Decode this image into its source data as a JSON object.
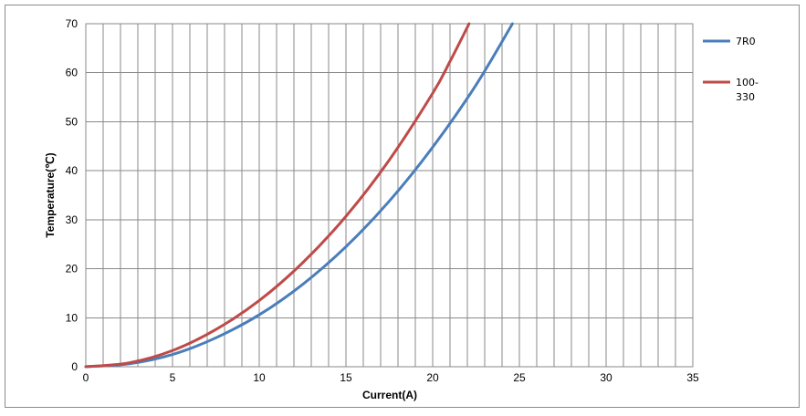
{
  "chart_data": {
    "type": "line",
    "title": "",
    "xlabel": "Current(A)",
    "ylabel": "Temperature(℃)",
    "xlim": [
      0,
      35
    ],
    "ylim": [
      0,
      70
    ],
    "x_ticks": [
      "0",
      "5",
      "10",
      "15",
      "20",
      "25",
      "30",
      "35"
    ],
    "y_ticks": [
      "0",
      "10",
      "20",
      "30",
      "40",
      "50",
      "60",
      "70"
    ],
    "grid": true,
    "legend_position": "right",
    "series": [
      {
        "name": "7R0",
        "color": "#4a7ebb",
        "x": [
          0,
          2.5,
          5,
          7.5,
          10,
          12.5,
          15,
          17.5,
          20,
          22.5,
          24.6
        ],
        "y": [
          0,
          0.6,
          2.5,
          5.9,
          10.6,
          16.8,
          24.5,
          33.8,
          44.8,
          57.5,
          70
        ]
      },
      {
        "name": "100-\n330",
        "color": "#be4b48",
        "x": [
          0,
          2.5,
          5,
          7.5,
          10,
          12.5,
          15,
          17.5,
          20,
          21,
          22.1
        ],
        "y": [
          0,
          0.8,
          3.3,
          7.6,
          13.5,
          21.2,
          30.7,
          42.2,
          55.8,
          62.3,
          70
        ]
      }
    ]
  }
}
